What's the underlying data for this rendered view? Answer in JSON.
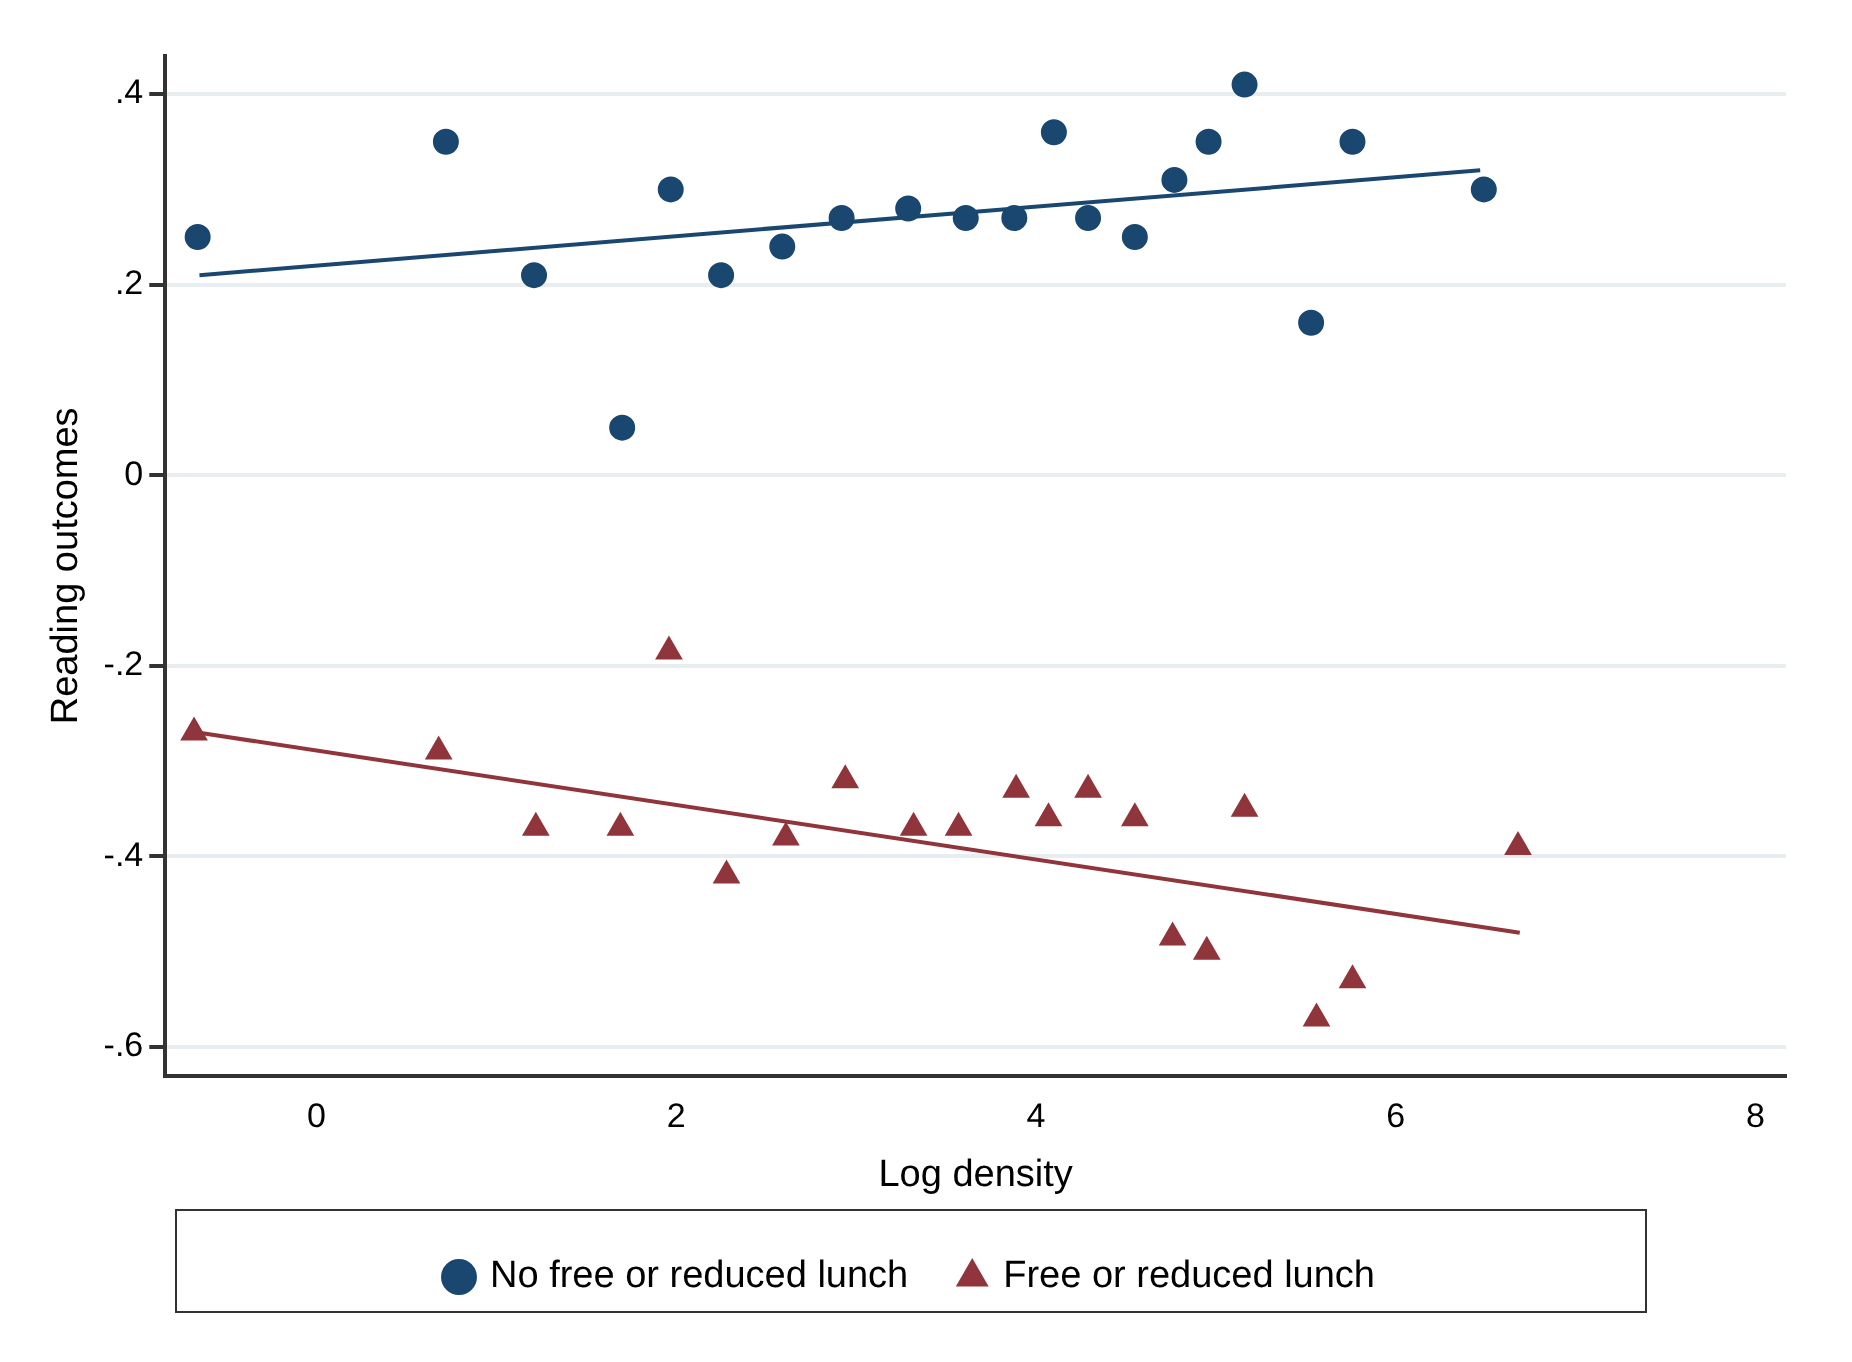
{
  "chart_data": {
    "type": "scatter",
    "xlabel": "Log density",
    "ylabel": "Reading outcomes",
    "xlim": [
      -0.84,
      8.17
    ],
    "ylim": [
      -0.63,
      0.44
    ],
    "xticks": [
      0,
      2,
      4,
      6,
      8
    ],
    "yticks": [
      {
        "value": -0.6,
        "label": "-.6"
      },
      {
        "value": -0.4,
        "label": "-.4"
      },
      {
        "value": -0.2,
        "label": "-.2"
      },
      0,
      {
        "value": 0.2,
        "label": ".2"
      },
      {
        "value": 0.4,
        "label": ".4"
      }
    ],
    "grid": "y",
    "legend": "bottom",
    "series": [
      {
        "name": "No free or reduced lunch",
        "marker": "circle",
        "color": "#1a476f",
        "x": [
          -0.66,
          0.72,
          1.21,
          1.7,
          1.97,
          2.25,
          2.59,
          2.92,
          3.29,
          3.61,
          3.88,
          4.1,
          4.29,
          4.55,
          4.77,
          4.96,
          5.16,
          5.53,
          5.76,
          6.49
        ],
        "values": [
          0.25,
          0.35,
          0.21,
          0.05,
          0.3,
          0.21,
          0.24,
          0.27,
          0.28,
          0.27,
          0.27,
          0.36,
          0.27,
          0.25,
          0.31,
          0.35,
          0.41,
          0.16,
          0.35,
          0.3
        ]
      },
      {
        "name": "Free or reduced lunch",
        "marker": "triangle",
        "color": "#90353b",
        "x": [
          -0.68,
          0.68,
          1.22,
          1.69,
          1.96,
          2.28,
          2.61,
          2.94,
          3.32,
          3.57,
          3.89,
          4.07,
          4.29,
          4.55,
          4.76,
          4.95,
          5.16,
          5.56,
          5.76,
          6.68
        ],
        "values": [
          -0.27,
          -0.29,
          -0.37,
          -0.37,
          -0.185,
          -0.42,
          -0.38,
          -0.32,
          -0.37,
          -0.37,
          -0.33,
          -0.36,
          -0.33,
          -0.36,
          -0.485,
          -0.5,
          -0.35,
          -0.57,
          -0.53,
          -0.39
        ]
      },
      {
        "type": "line",
        "marker": "none",
        "color": "#1a476f",
        "x": [
          -0.65,
          6.47
        ],
        "values": [
          0.21,
          0.32
        ]
      },
      {
        "type": "line",
        "marker": "none",
        "color": "#90353b",
        "x": [
          -0.66,
          6.69
        ],
        "values": [
          -0.27,
          -0.48
        ]
      }
    ]
  }
}
